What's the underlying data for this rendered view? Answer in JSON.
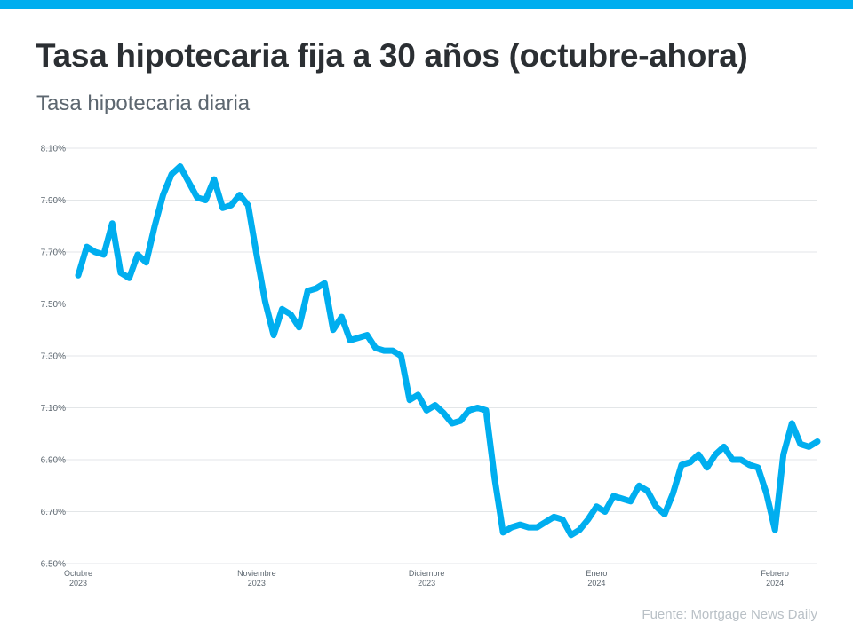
{
  "header": {
    "title": "Tasa hipotecaria fija a 30 años (octubre-ahora)",
    "subtitle": "Tasa hipotecaria diaria"
  },
  "footer": {
    "source": "Fuente: Mortgage News Daily"
  },
  "colors": {
    "accent": "#00aeef",
    "line": "#00aeef",
    "grid": "#e3e6e8",
    "axis_text": "#5d6770"
  },
  "chart_data": {
    "type": "line",
    "title": "Tasa hipotecaria fija a 30 años (octubre-ahora)",
    "subtitle": "Tasa hipotecaria diaria",
    "xlabel": "",
    "ylabel": "",
    "ylim": [
      6.5,
      8.1
    ],
    "y_ticks": [
      "6.50%",
      "6.70%",
      "6.90%",
      "7.10%",
      "7.30%",
      "7.50%",
      "7.70%",
      "7.90%",
      "8.10%"
    ],
    "x_ticks": [
      {
        "month": "Octubre",
        "year": "2023",
        "index": 0
      },
      {
        "month": "Noviembre",
        "year": "2023",
        "index": 21
      },
      {
        "month": "Diciembre",
        "year": "2023",
        "index": 41
      },
      {
        "month": "Enero",
        "year": "2024",
        "index": 61
      },
      {
        "month": "Febrero",
        "year": "2024",
        "index": 82
      }
    ],
    "grid": true,
    "legend": "none",
    "series": [
      {
        "values": [
          7.61,
          7.72,
          7.7,
          7.69,
          7.81,
          7.62,
          7.6,
          7.69,
          7.66,
          7.8,
          7.92,
          8.0,
          8.03,
          7.97,
          7.91,
          7.9,
          7.98,
          7.87,
          7.88,
          7.92,
          7.88,
          7.69,
          7.51,
          7.38,
          7.48,
          7.46,
          7.41,
          7.55,
          7.56,
          7.58,
          7.4,
          7.45,
          7.36,
          7.37,
          7.38,
          7.33,
          7.32,
          7.32,
          7.3,
          7.13,
          7.15,
          7.09,
          7.11,
          7.08,
          7.04,
          7.05,
          7.09,
          7.1,
          7.09,
          6.83,
          6.62,
          6.64,
          6.65,
          6.64,
          6.64,
          6.66,
          6.68,
          6.67,
          6.61,
          6.63,
          6.67,
          6.72,
          6.7,
          6.76,
          6.75,
          6.74,
          6.8,
          6.78,
          6.72,
          6.69,
          6.77,
          6.88,
          6.89,
          6.92,
          6.87,
          6.92,
          6.95,
          6.9,
          6.9,
          6.88,
          6.87,
          6.77,
          6.63,
          6.92,
          7.04,
          6.96,
          6.95,
          6.97
        ]
      }
    ]
  }
}
